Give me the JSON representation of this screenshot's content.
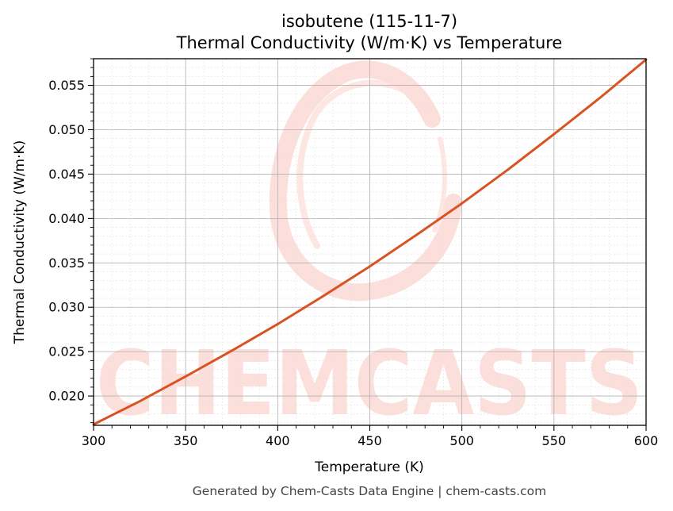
{
  "chart_data": {
    "type": "line",
    "title": "isobutene (115-11-7)",
    "subtitle": "Thermal Conductivity (W/m·K) vs Temperature",
    "xlabel": "Temperature (K)",
    "ylabel": "Thermal Conductivity (W/m·K)",
    "xlim": [
      300,
      600
    ],
    "ylim": [
      0.0167,
      0.058
    ],
    "x_ticks": [
      300,
      350,
      400,
      450,
      500,
      550,
      600
    ],
    "y_ticks": [
      0.02,
      0.025,
      0.03,
      0.035,
      0.04,
      0.045,
      0.05,
      0.055
    ],
    "x_tick_labels": [
      "300",
      "350",
      "400",
      "450",
      "500",
      "550",
      "600"
    ],
    "y_tick_labels": [
      "0.020",
      "0.025",
      "0.030",
      "0.035",
      "0.040",
      "0.045",
      "0.050",
      "0.055"
    ],
    "grid": true,
    "legend": "none",
    "series": [
      {
        "color": "#d95322",
        "x": [
          300,
          325,
          350,
          375,
          400,
          425,
          450,
          475,
          500,
          525,
          550,
          575,
          600
        ],
        "y": [
          0.0168,
          0.0194,
          0.0222,
          0.0251,
          0.0281,
          0.0313,
          0.0346,
          0.0381,
          0.0417,
          0.0455,
          0.0495,
          0.0536,
          0.0579
        ]
      }
    ]
  },
  "watermark": {
    "text": "CHEMCASTS",
    "color": "#fcdad4"
  },
  "footer": {
    "text": "Generated by Chem-Casts Data Engine | chem-casts.com"
  }
}
